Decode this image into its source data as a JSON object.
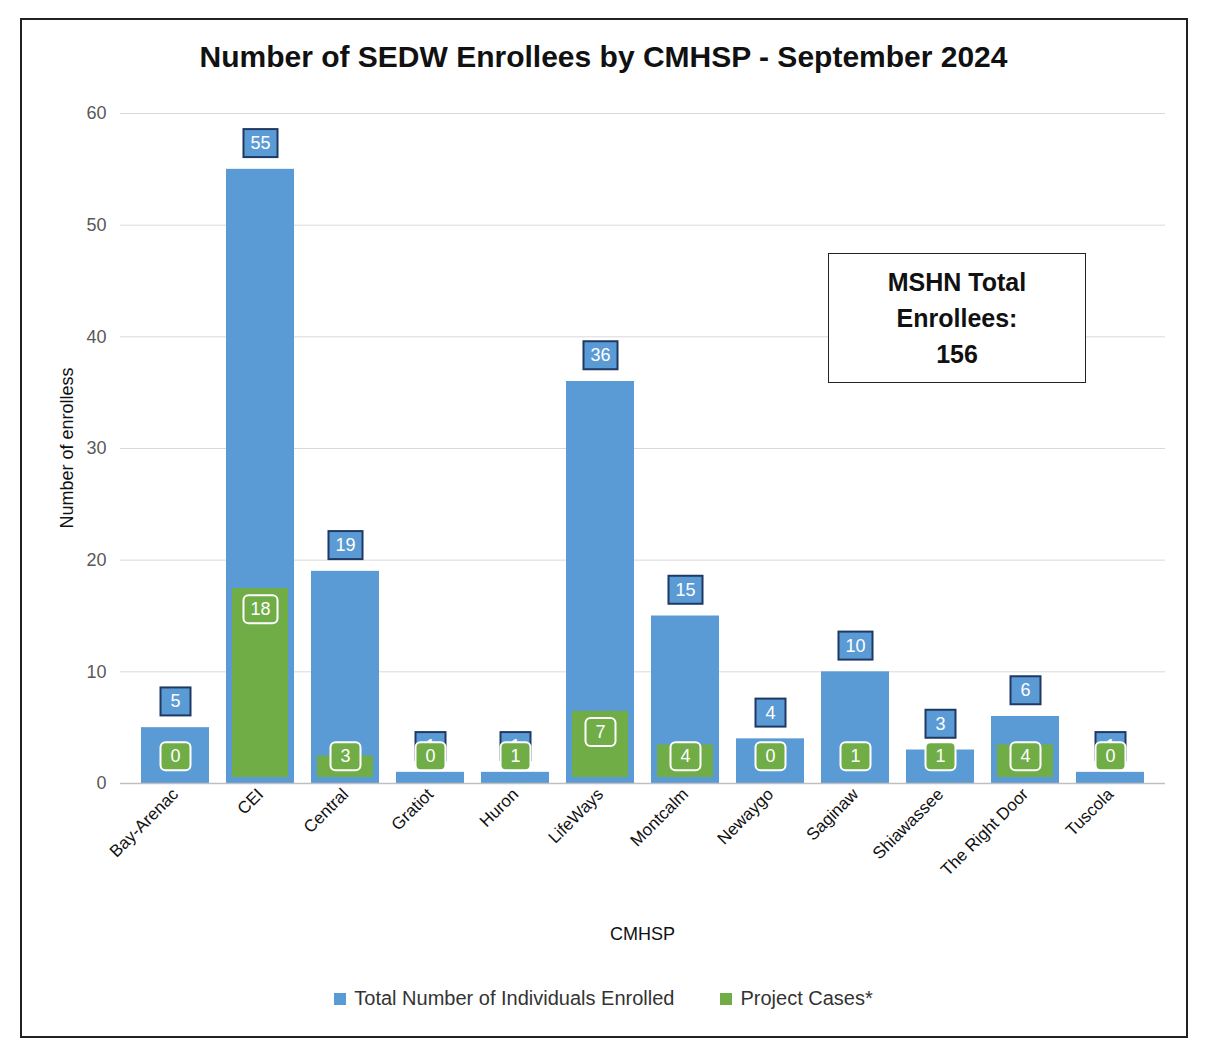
{
  "chart_data": {
    "type": "bar",
    "title": "Number of SEDW Enrollees by CMHSP - September 2024",
    "x_label": "CMHSP",
    "y_label": "Number of enrolless",
    "categories": [
      "Bay-Arenac",
      "CEI",
      "Central",
      "Gratiot",
      "Huron",
      "LifeWays",
      "Montcalm",
      "Newaygo",
      "Saginaw",
      "Shiawassee",
      "The Right Door",
      "Tuscola"
    ],
    "series": [
      {
        "name": "Total Number of Individuals Enrolled",
        "color": "#5b9bd5",
        "values": [
          5,
          55,
          19,
          1,
          1,
          36,
          15,
          4,
          10,
          3,
          6,
          1
        ]
      },
      {
        "name": "Project Cases*",
        "color": "#70ad47",
        "values": [
          0,
          18,
          3,
          0,
          1,
          7,
          4,
          0,
          1,
          1,
          4,
          0
        ]
      }
    ],
    "ylim": [
      0,
      60
    ],
    "yticks": [
      0,
      10,
      20,
      30,
      40,
      50,
      60
    ],
    "grid": true,
    "stacked": false,
    "data_labels": true,
    "legend": "bottom",
    "annotation": [
      "MSHN Total",
      "Enrollees:",
      "156"
    ]
  }
}
